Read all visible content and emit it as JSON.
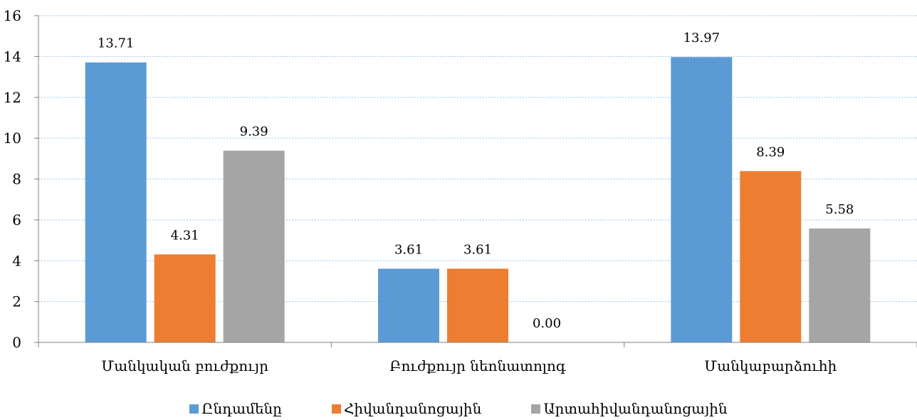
{
  "chart_data": {
    "type": "bar",
    "categories": [
      "Մանկական բուժքույր",
      "Բուժքույր նեոնատոլոգ",
      "Մանկաբարձուհի"
    ],
    "series": [
      {
        "name": "Ընդամենը",
        "values": [
          13.71,
          3.61,
          13.97
        ],
        "color": "#5b9bd5"
      },
      {
        "name": "Հիվանդանոցային",
        "values": [
          4.31,
          3.61,
          8.39
        ],
        "color": "#ed7d31"
      },
      {
        "name": "Արտահիվանդանոցային",
        "values": [
          9.39,
          0.0,
          5.58
        ],
        "color": "#a5a5a5"
      }
    ],
    "data_labels": [
      [
        "13.71",
        "3.61",
        "13.97"
      ],
      [
        "4.31",
        "3.61",
        "8.39"
      ],
      [
        "9.39",
        "0.00",
        "5.58"
      ]
    ],
    "ylim": [
      0,
      16
    ],
    "yticks": [
      0,
      2,
      4,
      6,
      8,
      10,
      12,
      14,
      16
    ],
    "grid": true,
    "legend_position": "bottom",
    "title": "",
    "xlabel": "",
    "ylabel": ""
  }
}
